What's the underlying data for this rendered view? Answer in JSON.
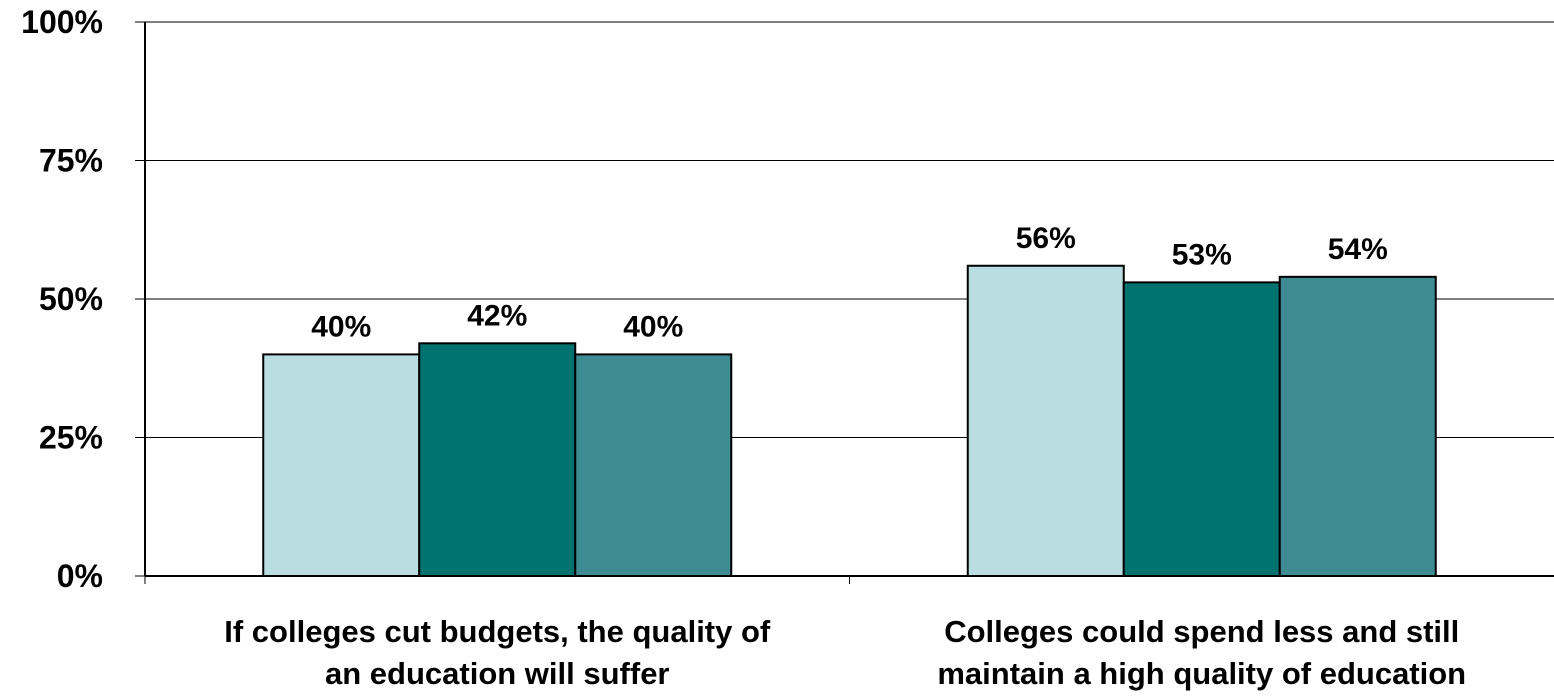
{
  "chart_data": {
    "type": "bar",
    "categories": [
      [
        "If colleges cut budgets, the quality of",
        "an education will suffer"
      ],
      [
        "Colleges could spend less and still",
        "maintain a high quality of education"
      ]
    ],
    "series": [
      {
        "values": [
          40,
          56
        ],
        "color": "#b9dde1"
      },
      {
        "values": [
          42,
          53
        ],
        "color": "#007370"
      },
      {
        "values": [
          40,
          54
        ],
        "color": "#3f8b93"
      }
    ],
    "data_labels": [
      [
        "40%",
        "56%"
      ],
      [
        "42%",
        "53%"
      ],
      [
        "40%",
        "54%"
      ]
    ],
    "yticks": [
      "0%",
      "25%",
      "50%",
      "75%",
      "100%"
    ],
    "ylim": [
      0,
      100
    ],
    "grid": true,
    "legend": "none"
  }
}
